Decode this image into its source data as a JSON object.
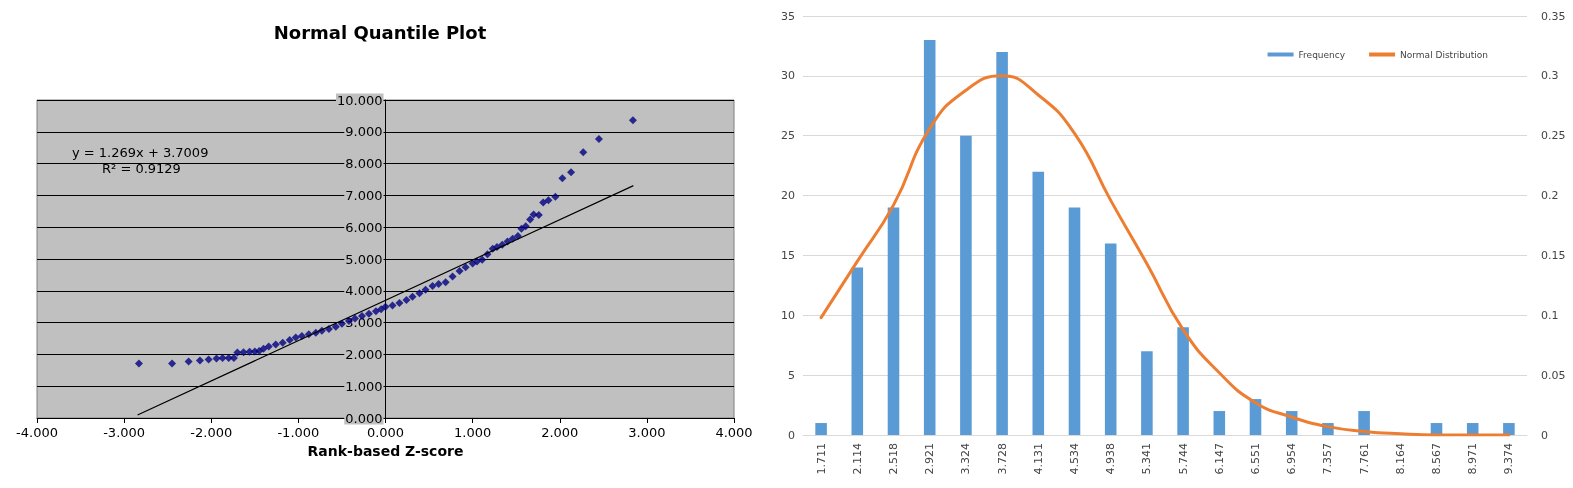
{
  "chart_data": [
    {
      "type": "scatter",
      "title": "Normal Quantile Plot",
      "xlabel": "Rank-based Z-score",
      "annotations": [
        "y = 1.269x + 3.7009",
        "R² = 0.9129"
      ],
      "series": [
        {
          "marker": "diamond",
          "color": "#000080",
          "x": [
            -2.83,
            -2.45,
            -2.26,
            -2.13,
            -2.03,
            -1.94,
            -1.87,
            -1.8,
            -1.74,
            -1.7,
            -1.63,
            -1.56,
            -1.5,
            -1.45,
            -1.4,
            -1.34,
            -1.26,
            -1.18,
            -1.1,
            -1.03,
            -0.96,
            -0.88,
            -0.8,
            -0.73,
            -0.65,
            -0.57,
            -0.5,
            -0.42,
            -0.35,
            -0.27,
            -0.19,
            -0.11,
            -0.05,
            0.0,
            0.08,
            0.16,
            0.24,
            0.31,
            0.39,
            0.46,
            0.54,
            0.61,
            0.69,
            0.77,
            0.85,
            0.92,
            1.0,
            1.05,
            1.11,
            1.17,
            1.23,
            1.28,
            1.34,
            1.4,
            1.46,
            1.52,
            1.56,
            1.61,
            1.66,
            1.7,
            1.76,
            1.81,
            1.87,
            1.95,
            2.03,
            2.13,
            2.27,
            2.45,
            2.84
          ],
          "values": [
            1.71,
            1.71,
            1.78,
            1.81,
            1.84,
            1.87,
            1.89,
            1.89,
            1.89,
            2.06,
            2.07,
            2.08,
            2.09,
            2.11,
            2.18,
            2.25,
            2.31,
            2.37,
            2.45,
            2.53,
            2.58,
            2.63,
            2.68,
            2.74,
            2.8,
            2.87,
            2.96,
            3.05,
            3.13,
            3.21,
            3.28,
            3.36,
            3.42,
            3.5,
            3.54,
            3.62,
            3.71,
            3.81,
            3.92,
            4.03,
            4.15,
            4.21,
            4.27,
            4.45,
            4.62,
            4.74,
            4.86,
            4.92,
            4.98,
            5.15,
            5.32,
            5.38,
            5.45,
            5.55,
            5.64,
            5.72,
            5.95,
            6.03,
            6.24,
            6.4,
            6.38,
            6.78,
            6.85,
            6.96,
            7.54,
            7.73,
            8.36,
            8.77,
            9.36
          ]
        },
        {
          "type": "line",
          "marker": "none",
          "color": "#000000",
          "x": [
            -2.84,
            2.84
          ],
          "values": [
            0.1,
            7.3
          ]
        }
      ],
      "xlim": [
        -4,
        4
      ],
      "xticks": [
        {
          "value": -4,
          "label": "-4.000"
        },
        {
          "value": -3,
          "label": "-3.000"
        },
        {
          "value": -2,
          "label": "-2.000"
        },
        {
          "value": -1,
          "label": "-1.000"
        },
        {
          "value": 0,
          "label": "0.000"
        },
        {
          "value": 1,
          "label": "1.000"
        },
        {
          "value": 2,
          "label": "2.000"
        },
        {
          "value": 3,
          "label": "3.000"
        },
        {
          "value": 4,
          "label": "4.000"
        }
      ],
      "ylim": [
        0,
        10
      ],
      "yticks": [
        {
          "value": 0,
          "label": "0.000"
        },
        {
          "value": 1,
          "label": "1.000"
        },
        {
          "value": 2,
          "label": "2.000"
        },
        {
          "value": 3,
          "label": "3.000"
        },
        {
          "value": 4,
          "label": "4.000"
        },
        {
          "value": 5,
          "label": "5.000"
        },
        {
          "value": 6,
          "label": "6.000"
        },
        {
          "value": 7,
          "label": "7.000"
        },
        {
          "value": 8,
          "label": "8.000"
        },
        {
          "value": 9,
          "label": "9.000"
        },
        {
          "value": 10,
          "label": "10.000"
        }
      ],
      "grid": "y",
      "legend": false
    },
    {
      "type": "bar",
      "categories": [
        "1.711",
        "2.114",
        "2.518",
        "2.921",
        "3.324",
        "3.728",
        "4.131",
        "4.534",
        "4.938",
        "5.341",
        "5.744",
        "6.147",
        "6.551",
        "6.954",
        "7.357",
        "7.761",
        "8.164",
        "8.567",
        "8.971",
        "9.374"
      ],
      "series": [
        {
          "name": "Frequency",
          "color": "#5b9bd5",
          "values": [
            1,
            14,
            19,
            33,
            25,
            32,
            22,
            19,
            16,
            7,
            9,
            2,
            3,
            2,
            1,
            2,
            0,
            1,
            1,
            1
          ]
        },
        {
          "name": "Normal Distribution",
          "type": "line",
          "axis": "y2",
          "marker": "none",
          "color": "#ed7d31",
          "values": [
            0.098,
            0.145,
            0.192,
            0.256,
            0.288,
            0.3,
            0.284,
            0.252,
            0.196,
            0.143,
            0.088,
            0.052,
            0.027,
            0.015,
            0.007,
            0.003,
            0.001,
            0,
            0,
            0
          ]
        }
      ],
      "ylim": [
        0,
        35
      ],
      "yticks": [
        0,
        5,
        10,
        15,
        20,
        25,
        30,
        35
      ],
      "y2lim": [
        0,
        0.35
      ],
      "y2ticks": [
        0,
        0.05,
        0.1,
        0.15,
        0.2,
        0.25,
        0.3,
        0.35
      ],
      "grid": "y",
      "legend": "top right"
    }
  ]
}
